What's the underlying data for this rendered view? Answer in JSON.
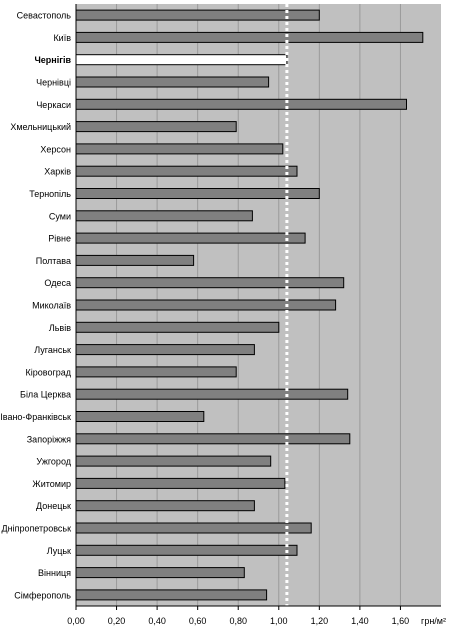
{
  "chart_data": {
    "type": "bar",
    "orientation": "horizontal",
    "categories": [
      "Севастополь",
      "Київ",
      "Чернігів",
      "Чернівці",
      "Черкаси",
      "Хмельницький",
      "Херсон",
      "Харків",
      "Тернопіль",
      "Суми",
      "Рівне",
      "Полтава",
      "Одеса",
      "Миколаїв",
      "Львів",
      "Луганськ",
      "Кіровоград",
      "Біла Церква",
      "Івано-Франківськ",
      "Запоріжжя",
      "Ужгород",
      "Житомир",
      "Донецьк",
      "Дніпропетровськ",
      "Луцьк",
      "Вінниця",
      "Сімферополь"
    ],
    "values": [
      1.2,
      1.71,
      1.04,
      0.95,
      1.63,
      0.79,
      1.02,
      1.09,
      1.2,
      0.87,
      1.13,
      0.58,
      1.32,
      1.28,
      1.0,
      0.88,
      0.79,
      1.34,
      0.63,
      1.35,
      0.96,
      1.03,
      0.88,
      1.16,
      1.09,
      0.83,
      0.94
    ],
    "highlight_category": "Чернігів",
    "reference_line": 1.04,
    "xlim": [
      0,
      1.8
    ],
    "ticks": [
      "0,00",
      "0,20",
      "0,40",
      "0,60",
      "0,80",
      "1,00",
      "1,20",
      "1,40",
      "1,60"
    ],
    "tick_values": [
      0,
      0.2,
      0.4,
      0.6,
      0.8,
      1.0,
      1.2,
      1.4,
      1.6
    ],
    "unit_label": "грн/м²",
    "grid": true,
    "colors": {
      "plot_bg": "#c0c0c0",
      "bar": "#808080",
      "highlight_bar": "#ffffff",
      "bar_edge": "#000000",
      "grid": "#9a9a9a",
      "reference_line": "#ffffff"
    }
  }
}
